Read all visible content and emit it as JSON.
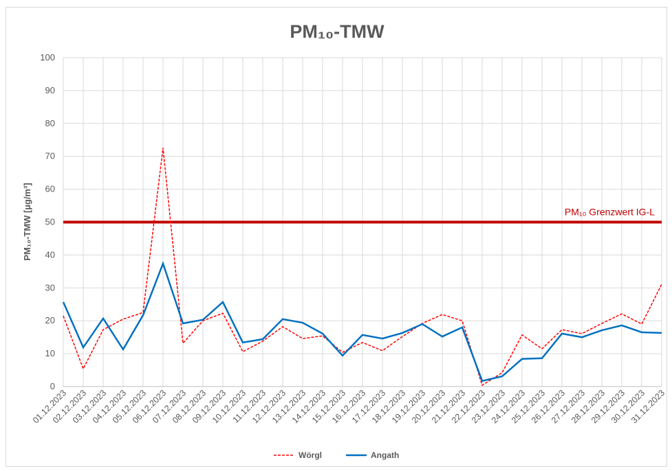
{
  "chart_data": {
    "type": "line",
    "title": "PM₁₀-TMW",
    "y_label": "PM₁₀-TMW [µg/m³]",
    "categories": [
      "01.12.2023",
      "02.12.2023",
      "03.12.2023",
      "04.12.2023",
      "05.12.2023",
      "06.12.2023",
      "07.12.2023",
      "08.12.2023",
      "09.12.2023",
      "10.12.2023",
      "11.12.2023",
      "12.12.2023",
      "13.12.2023",
      "14.12.2023",
      "15.12.2023",
      "16.12.2023",
      "17.12.2023",
      "18.12.2023",
      "19.12.2023",
      "20.12.2023",
      "21.12.2023",
      "22.12.2023",
      "23.12.2023",
      "24.12.2023",
      "25.12.2023",
      "26.12.2023",
      "27.12.2023",
      "28.12.2023",
      "29.12.2023",
      "30.12.2023",
      "31.12.2023"
    ],
    "series": [
      {
        "name": "Wörgl",
        "color": "#ff0000",
        "dashed": true,
        "values": [
          21.5,
          5.4,
          17.3,
          20.5,
          22.5,
          72.6,
          13.2,
          20,
          22.3,
          10.6,
          13.8,
          18.2,
          14.6,
          15.4,
          10.4,
          13.4,
          10.9,
          15.2,
          19.2,
          21.9,
          20,
          0.4,
          4.2,
          15.7,
          11.5,
          17.3,
          16.1,
          19.2,
          22.1,
          19,
          31.1
        ]
      },
      {
        "name": "Angath",
        "color": "#0070c0",
        "dashed": false,
        "values": [
          25.7,
          11.9,
          20.7,
          11.3,
          21.7,
          37.4,
          19.2,
          20.3,
          25.7,
          13.4,
          14.4,
          20.5,
          19.4,
          16.1,
          9.4,
          15.7,
          14.6,
          16.3,
          19,
          15.2,
          18,
          1.7,
          3.1,
          8.4,
          8.6,
          16.1,
          15,
          17.1,
          18.6,
          16.5,
          16.3
        ]
      }
    ],
    "threshold": {
      "value": 50,
      "label": "PM₁₀ Grenzwert IG-L",
      "color": "#c00000"
    },
    "ylim": [
      0,
      100
    ],
    "yticks": [
      0,
      10,
      20,
      30,
      40,
      50,
      60,
      70,
      80,
      90,
      100
    ],
    "grid": true,
    "legend": "bottom"
  }
}
